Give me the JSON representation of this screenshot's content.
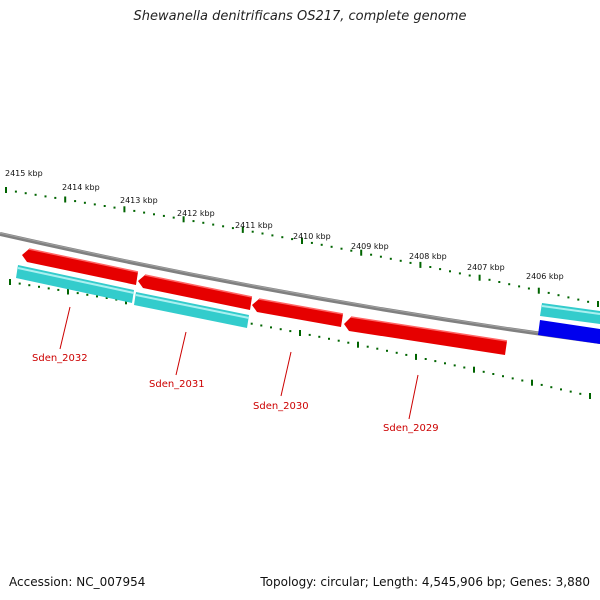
{
  "title": "Shewanella denitrificans OS217, complete genome",
  "footer": {
    "accession": "Accession: NC_007954",
    "summary": "Topology: circular; Length: 4,545,906 bp; Genes: 3,880"
  },
  "ruler_labels": [
    "2415 kbp",
    "2414 kbp",
    "2413 kbp",
    "2412 kbp",
    "2411 kbp",
    "2410 kbp",
    "2409 kbp",
    "2408 kbp",
    "2407 kbp",
    "2406 kbp"
  ],
  "gene_labels": [
    "Sden_2032",
    "Sden_2031",
    "Sden_2030",
    "Sden_2029"
  ],
  "colors": {
    "forward_cds": "#e60000",
    "reverse_cds_feature": "#33cccc",
    "blue_feature": "#0000ee",
    "backbone": "#808080",
    "ticks": "#006400",
    "label": "#cc0000"
  }
}
